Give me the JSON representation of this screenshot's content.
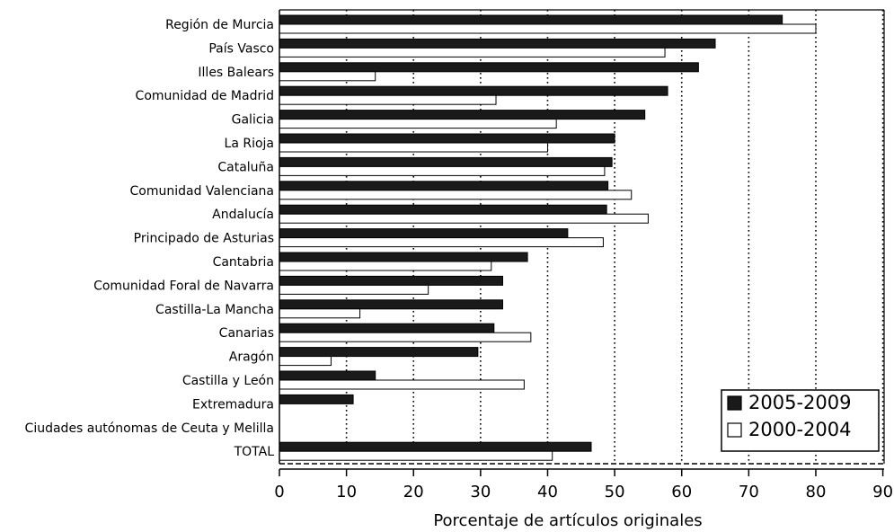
{
  "chart_data": {
    "type": "bar",
    "orientation": "horizontal",
    "categories": [
      "Región de Murcia",
      "País Vasco",
      "Illes Balears",
      "Comunidad de Madrid",
      "Galicia",
      "La Rioja",
      "Cataluña",
      "Comunidad Valenciana",
      "Andalucía",
      "Principado de Asturias",
      "Cantabria",
      "Comunidad Foral de Navarra",
      "Castilla-La Mancha",
      "Canarias",
      "Aragón",
      "Castilla y León",
      "Extremadura",
      "Ciudades autónomas de Ceuta y Melilla",
      "TOTAL"
    ],
    "series": [
      {
        "name": "2005-2009",
        "color": "#1a1a1a",
        "values": [
          75,
          65,
          62.5,
          57.9,
          54.5,
          50,
          49.6,
          49,
          48.8,
          43,
          37,
          33.3,
          33.3,
          32,
          29.6,
          14.3,
          11,
          0,
          46.5
        ]
      },
      {
        "name": "2000-2004",
        "color": "#ffffff",
        "values": [
          80,
          57.5,
          14.3,
          32.3,
          41.3,
          40,
          48.5,
          52.5,
          55,
          48.3,
          31.6,
          22.2,
          12,
          37.5,
          7.7,
          36.5,
          0,
          0,
          40.7
        ]
      }
    ],
    "xlabel": "Porcentaje de artículos originales",
    "xlim": [
      0,
      90
    ],
    "xticks": [
      "0",
      "10",
      "20",
      "30",
      "40",
      "50",
      "60",
      "70",
      "80",
      "90"
    ],
    "grid": "vertical dotted",
    "legend_position": "bottom-right"
  }
}
